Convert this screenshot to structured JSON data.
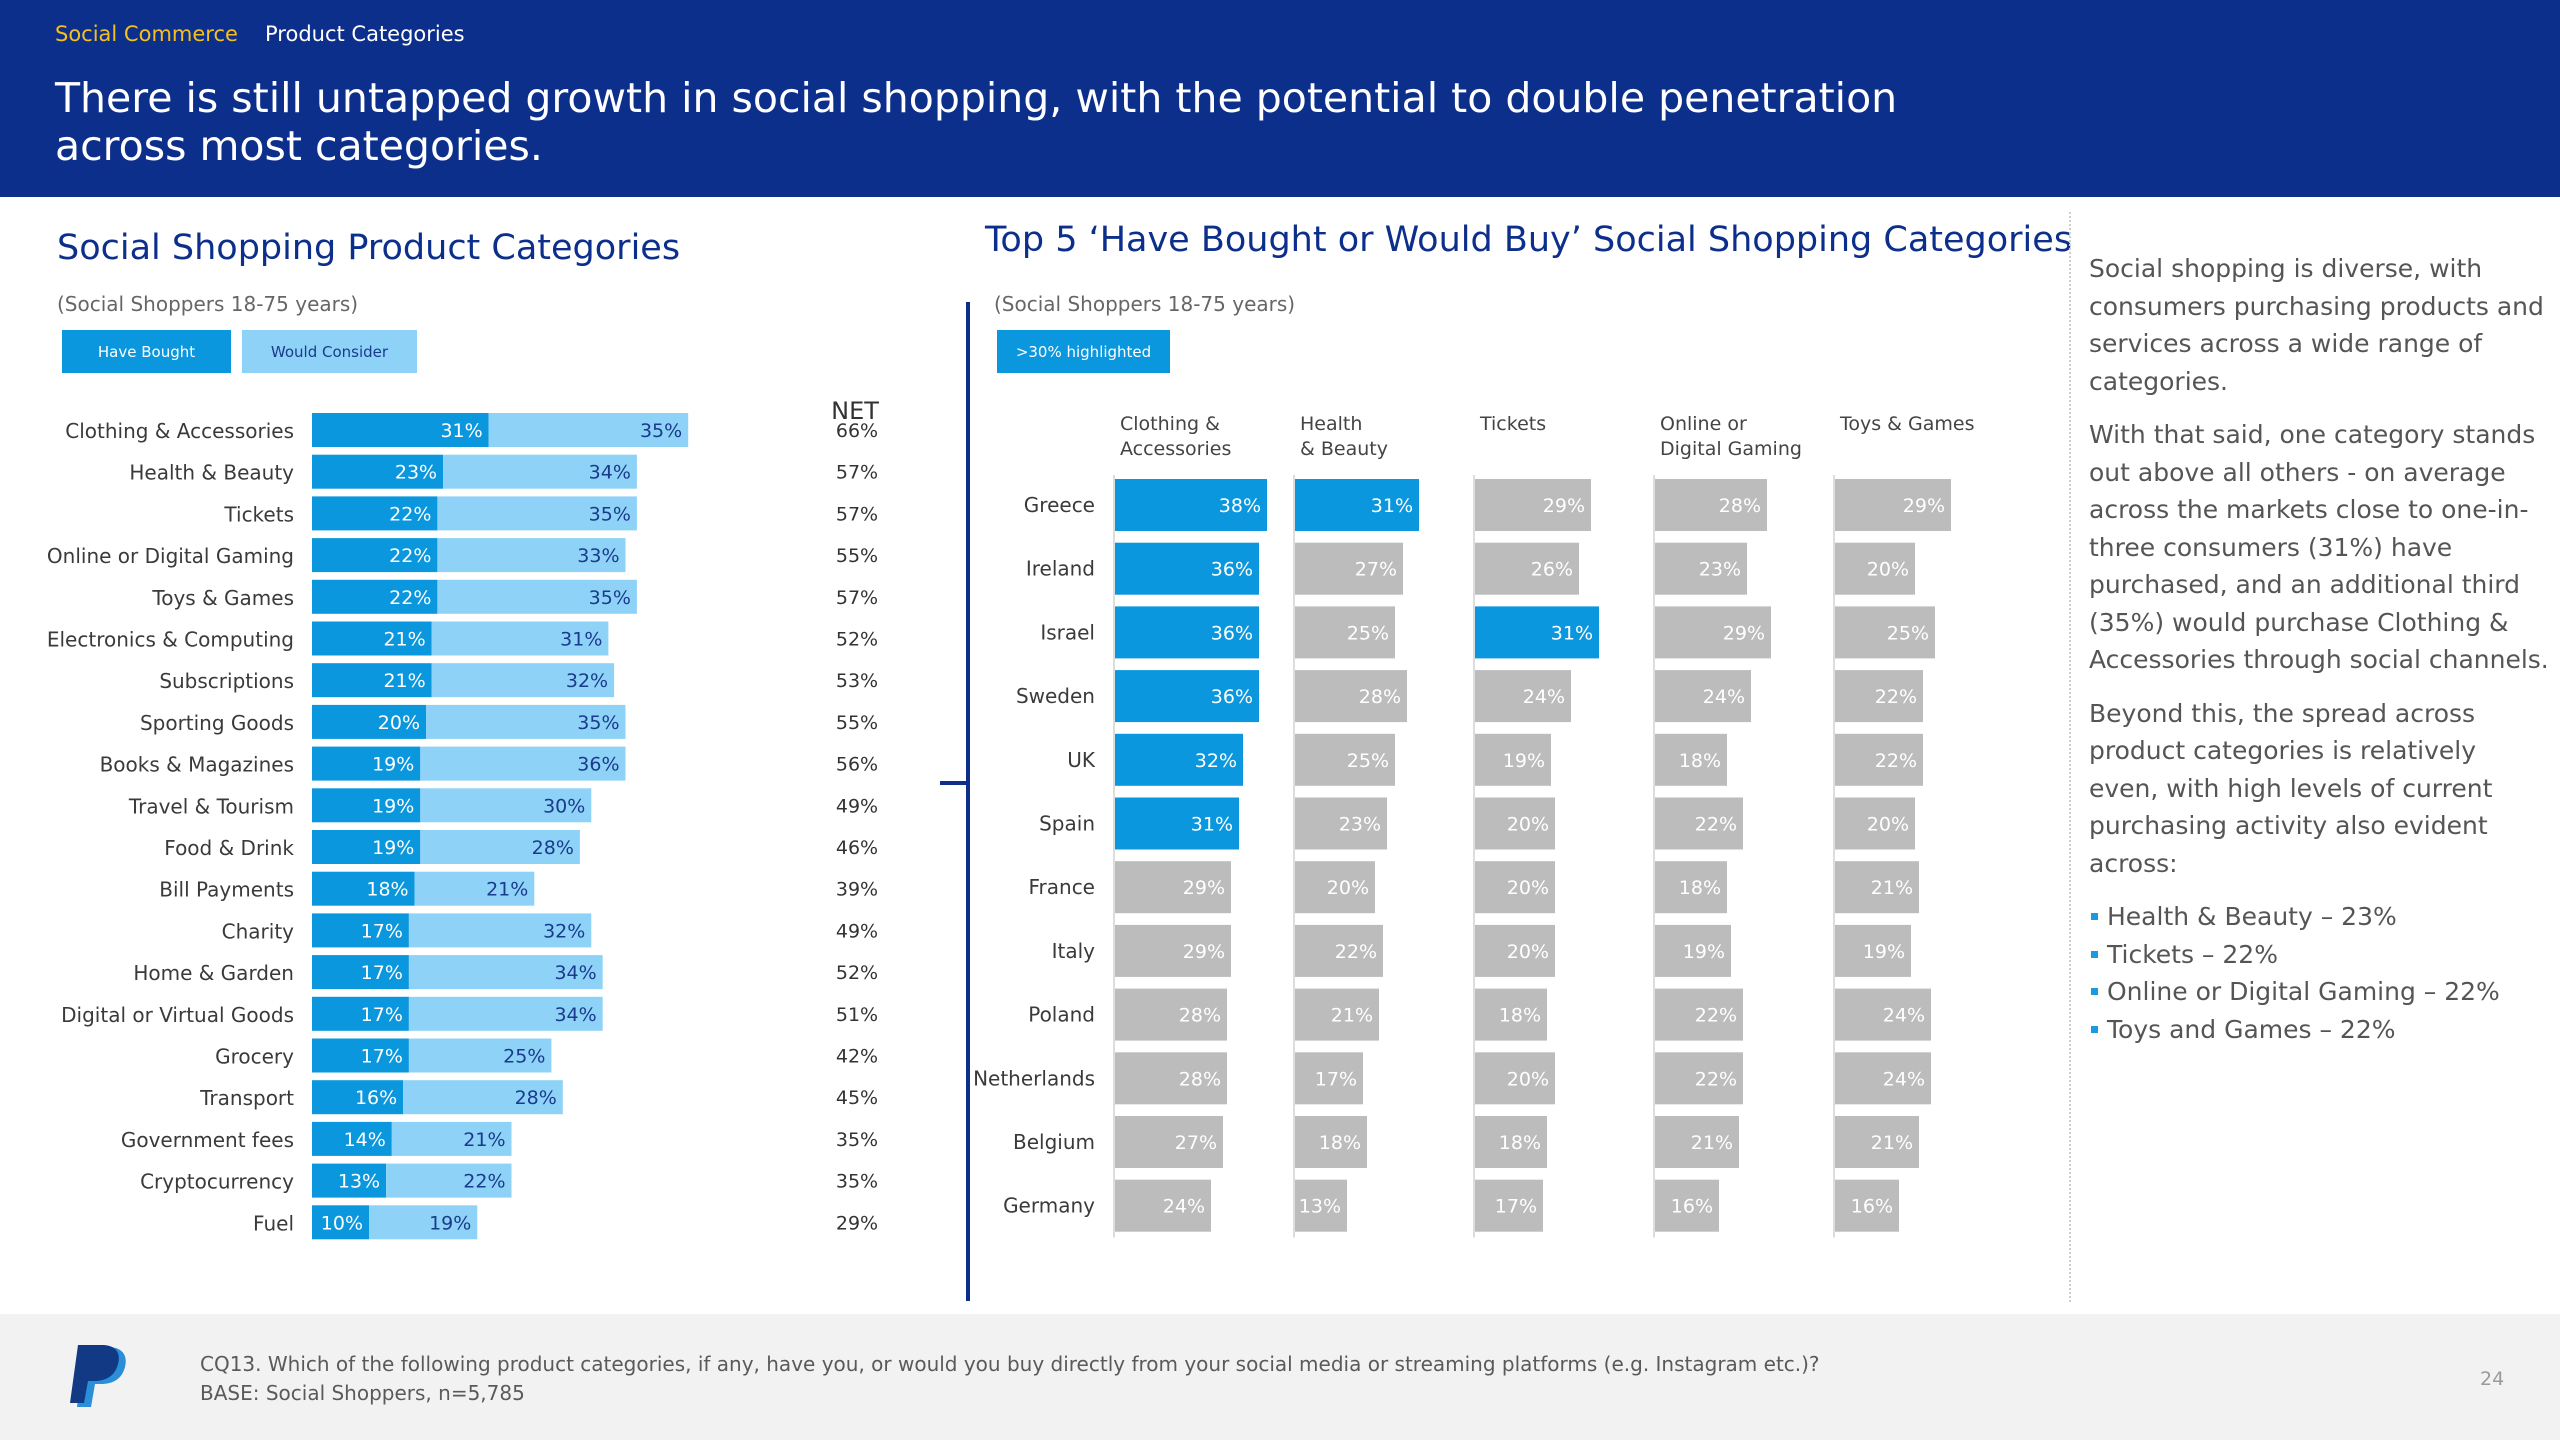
{
  "header": {
    "breadcrumb_1": "Social Commerce",
    "breadcrumb_2": "Product Categories",
    "headline": "There is still untapped growth in social shopping, with the potential to double penetration across most categories."
  },
  "left_panel": {
    "title": "Social Shopping Product Categories",
    "subtitle": "(Social Shoppers 18-75 years)",
    "legend_bought": "Have Bought",
    "legend_consider": "Would Consider",
    "net_header": "NET"
  },
  "right_panel": {
    "title": "Top 5 ‘Have Bought or Would Buy’ Social Shopping Categories",
    "subtitle": "(Social Shoppers 18-75 years)",
    "legend_highlight": ">30% highlighted"
  },
  "side_text": {
    "p1": "Social shopping is diverse, with consumers purchasing products and services across a wide range of categories.",
    "p2": "With that said, one category stands out above all others - on average across the markets close to one-in-three consumers (31%) have purchased, and an additional third (35%) would purchase Clothing & Accessories through social channels.",
    "p3": "Beyond this, the spread across product categories is relatively even, with high levels of current purchasing activity also evident across:",
    "bullets": [
      "Health & Beauty – 23%",
      "Tickets – 22%",
      "Online or Digital Gaming – 22%",
      "Toys and Games – 22%"
    ]
  },
  "footer": {
    "question": "CQ13. Which of the following product categories, if any, have you, or would you buy directly from your social media or streaming platforms (e.g. Instagram etc.)?",
    "base": "BASE: Social Shoppers, n=5,785",
    "page_number": "24"
  },
  "colors": {
    "header_bg": "#0d2f8c",
    "have_bought": "#0a97de",
    "would_consider": "#8ed3f7",
    "highlight": "#0a97de",
    "non_highlight": "#bcbcbc"
  },
  "chart_data": [
    {
      "type": "bar",
      "orientation": "horizontal",
      "stacked": true,
      "title": "Social Shopping Product Categories",
      "categories": [
        "Clothing & Accessories",
        "Health & Beauty",
        "Tickets",
        "Online or Digital Gaming",
        "Toys & Games",
        "Electronics & Computing",
        "Subscriptions",
        "Sporting Goods",
        "Books & Magazines",
        "Travel & Tourism",
        "Food & Drink",
        "Bill Payments",
        "Charity",
        "Home & Garden",
        "Digital or Virtual Goods",
        "Grocery",
        "Transport",
        "Government fees",
        "Cryptocurrency",
        "Fuel"
      ],
      "series": [
        {
          "name": "Have Bought",
          "values": [
            31,
            23,
            22,
            22,
            22,
            21,
            21,
            20,
            19,
            19,
            19,
            18,
            17,
            17,
            17,
            17,
            16,
            14,
            13,
            10
          ]
        },
        {
          "name": "Would Consider",
          "values": [
            35,
            34,
            35,
            33,
            35,
            31,
            32,
            35,
            36,
            30,
            28,
            21,
            32,
            34,
            34,
            25,
            28,
            21,
            22,
            19
          ]
        }
      ],
      "net": [
        "66%",
        "57%",
        "57%",
        "55%",
        "57%",
        "52%",
        "53%",
        "55%",
        "56%",
        "49%",
        "46%",
        "39%",
        "49%",
        "52%",
        "51%",
        "42%",
        "45%",
        "35%",
        "35%",
        "29%"
      ],
      "unit": "%"
    },
    {
      "type": "bar",
      "orientation": "horizontal",
      "small_multiples": true,
      "title": "Top 5 ‘Have Bought or Would Buy’ Social Shopping Categories",
      "highlight_threshold": 30,
      "countries": [
        "Greece",
        "Ireland",
        "Israel",
        "Sweden",
        "UK",
        "Spain",
        "France",
        "Italy",
        "Poland",
        "Netherlands",
        "Belgium",
        "Germany"
      ],
      "series": [
        {
          "name": "Clothing & Accessories",
          "values": [
            38,
            36,
            36,
            36,
            32,
            31,
            29,
            29,
            28,
            28,
            27,
            24
          ]
        },
        {
          "name": "Health & Beauty",
          "values": [
            31,
            27,
            25,
            28,
            25,
            23,
            20,
            22,
            21,
            17,
            18,
            13
          ]
        },
        {
          "name": "Tickets",
          "values": [
            29,
            26,
            31,
            24,
            19,
            20,
            20,
            20,
            18,
            20,
            18,
            17
          ]
        },
        {
          "name": "Online or Digital Gaming",
          "values": [
            28,
            23,
            29,
            24,
            18,
            22,
            18,
            19,
            22,
            22,
            21,
            16
          ]
        },
        {
          "name": "Toys & Games",
          "values": [
            29,
            20,
            25,
            22,
            22,
            20,
            21,
            19,
            24,
            24,
            21,
            16
          ]
        }
      ],
      "unit": "%"
    }
  ]
}
